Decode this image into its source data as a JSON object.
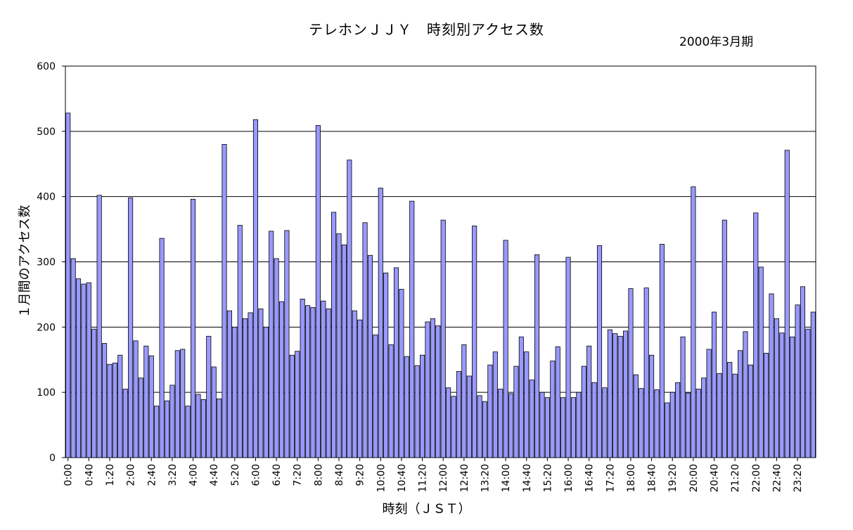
{
  "chart_data": {
    "type": "bar",
    "title": "テレホンＪＪＹ　時刻別アクセス数",
    "subtitle": "2000年3月期",
    "xlabel": "時刻（ＪＳＴ）",
    "ylabel": "１月間のアクセス数",
    "ylim": [
      0,
      600
    ],
    "yticks": [
      0,
      100,
      200,
      300,
      400,
      500,
      600
    ],
    "grid": true,
    "bar_color": "#9999ff",
    "tick_labels": [
      "0:00",
      "0:40",
      "1:20",
      "2:00",
      "2:40",
      "3:20",
      "4:00",
      "4:40",
      "5:20",
      "6:00",
      "6:40",
      "7:20",
      "8:00",
      "8:40",
      "9:20",
      "10:00",
      "10:40",
      "11:20",
      "12:00",
      "12:40",
      "13:20",
      "14:00",
      "14:40",
      "15:20",
      "16:00",
      "16:40",
      "17:20",
      "18:00",
      "18:40",
      "19:20",
      "20:00",
      "20:40",
      "21:20",
      "22:00",
      "22:40",
      "23:20"
    ],
    "interval_minutes": 10,
    "values": [
      528,
      305,
      274,
      266,
      268,
      197,
      402,
      175,
      143,
      145,
      157,
      105,
      398,
      179,
      122,
      171,
      156,
      79,
      336,
      87,
      111,
      164,
      166,
      79,
      396,
      97,
      89,
      186,
      139,
      90,
      480,
      225,
      200,
      356,
      213,
      222,
      518,
      228,
      200,
      347,
      305,
      239,
      348,
      157,
      163,
      243,
      233,
      230,
      509,
      240,
      228,
      376,
      343,
      326,
      456,
      225,
      211,
      360,
      310,
      188,
      413,
      283,
      173,
      291,
      258,
      155,
      393,
      141,
      157,
      208,
      213,
      202,
      364,
      107,
      94,
      132,
      173,
      125,
      355,
      95,
      86,
      142,
      162,
      105,
      333,
      98,
      140,
      185,
      162,
      119,
      311,
      100,
      92,
      148,
      170,
      92,
      307,
      92,
      100,
      140,
      171,
      115,
      325,
      107,
      196,
      190,
      186,
      194,
      259,
      127,
      106,
      260,
      157,
      104,
      327,
      84,
      100,
      115,
      185,
      99,
      415,
      105,
      122,
      166,
      223,
      129,
      364,
      146,
      128,
      164,
      193,
      142,
      375,
      292,
      160,
      251,
      213,
      191,
      471,
      185,
      234,
      262,
      197,
      223
    ]
  }
}
